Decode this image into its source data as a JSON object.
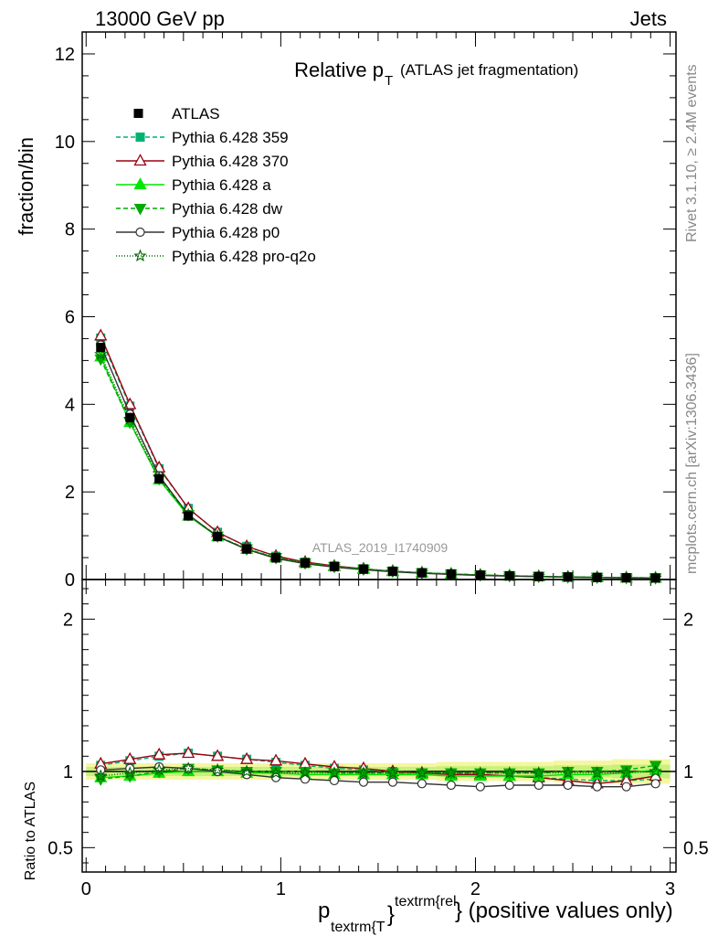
{
  "header": {
    "left": "13000 GeV pp",
    "right": "Jets"
  },
  "side_labels": {
    "rivet": "Rivet 3.1.10, ≥ 2.4M events",
    "mcplots": "mcplots.cern.ch [arXiv:1306.3436]"
  },
  "chart_data": {
    "type": "line",
    "title_main": "Relative p",
    "title_sub": "T",
    "title_paren": "(ATLAS jet fragmentation)",
    "watermark": "ATLAS_2019_I1740909",
    "ylabel": "fraction/bin",
    "ratio_ylabel": "Ratio to ATLAS",
    "xlabel_p": "p",
    "xlabel_sub": "textrm{T",
    "xlabel_brace1": "}",
    "xlabel_sup": "textrm{rel",
    "xlabel_rest": "} (positive values only)",
    "xlim": [
      -0.02,
      3.03
    ],
    "ylim": [
      0,
      12.5
    ],
    "ratio_ylim": [
      0.34,
      2.26
    ],
    "main_yticks": [
      "0",
      "2",
      "4",
      "6",
      "8",
      "10",
      "12"
    ],
    "ratio_yticks": [
      "0.5",
      "1",
      "2"
    ],
    "xticks": [
      "0",
      "1",
      "2",
      "3"
    ],
    "x": [
      0.075,
      0.225,
      0.375,
      0.525,
      0.675,
      0.825,
      0.975,
      1.125,
      1.275,
      1.425,
      1.575,
      1.725,
      1.875,
      2.025,
      2.175,
      2.325,
      2.475,
      2.625,
      2.775,
      2.925
    ],
    "atlas": {
      "name": "ATLAS",
      "y": [
        5.3,
        3.7,
        2.3,
        1.45,
        0.98,
        0.7,
        0.5,
        0.38,
        0.3,
        0.24,
        0.19,
        0.155,
        0.128,
        0.104,
        0.086,
        0.072,
        0.06,
        0.05,
        0.042,
        0.036
      ],
      "band": [
        0.03,
        0.03,
        0.03,
        0.03,
        0.03,
        0.03,
        0.03,
        0.03,
        0.03,
        0.03,
        0.03,
        0.03,
        0.035,
        0.035,
        0.035,
        0.035,
        0.04,
        0.04,
        0.045,
        0.045
      ]
    },
    "series": [
      {
        "name": "Pythia 6.428 359",
        "color": "#00b371",
        "dash": "5,3",
        "marker": "square-filled",
        "ratio": [
          1.04,
          1.07,
          1.1,
          1.12,
          1.1,
          1.08,
          1.06,
          1.04,
          1.02,
          1.01,
          1.0,
          0.99,
          0.99,
          0.98,
          0.97,
          0.96,
          0.95,
          0.94,
          0.94,
          0.95
        ]
      },
      {
        "name": "Pythia 6.428 370",
        "color": "#990011",
        "dash": "",
        "marker": "triangle-open",
        "ratio": [
          1.05,
          1.08,
          1.11,
          1.12,
          1.1,
          1.08,
          1.07,
          1.05,
          1.03,
          1.02,
          1.0,
          0.99,
          0.98,
          0.98,
          0.97,
          0.96,
          0.94,
          0.92,
          0.94,
          0.97
        ]
      },
      {
        "name": "Pythia 6.428 a",
        "color": "#00e600",
        "dash": "",
        "marker": "triangle-filled",
        "ratio": [
          0.96,
          0.97,
          0.99,
          1.0,
          1.0,
          0.99,
          0.99,
          0.98,
          0.98,
          0.98,
          0.98,
          0.98,
          0.97,
          0.97,
          0.97,
          0.97,
          0.98,
          0.98,
          0.99,
          1.01
        ]
      },
      {
        "name": "Pythia 6.428 dw",
        "color": "#00aa00",
        "dash": "5,3",
        "marker": "triangle-down-filled",
        "ratio": [
          0.95,
          0.97,
          1.0,
          1.02,
          1.01,
          1.0,
          1.0,
          1.0,
          0.99,
          0.99,
          0.99,
          0.99,
          0.99,
          0.99,
          0.99,
          0.99,
          1.0,
          1.0,
          1.01,
          1.04
        ]
      },
      {
        "name": "Pythia 6.428 p0",
        "color": "#333333",
        "dash": "",
        "marker": "circle-open",
        "ratio": [
          1.01,
          1.02,
          1.03,
          1.02,
          1.0,
          0.98,
          0.96,
          0.95,
          0.94,
          0.93,
          0.93,
          0.92,
          0.91,
          0.9,
          0.91,
          0.91,
          0.91,
          0.9,
          0.9,
          0.92
        ]
      },
      {
        "name": "Pythia 6.428 pro-q2o",
        "color": "#006600",
        "dash": "1,2",
        "marker": "star-open",
        "ratio": [
          0.97,
          0.99,
          1.01,
          1.02,
          1.01,
          1.0,
          0.99,
          0.99,
          0.99,
          0.99,
          0.99,
          0.99,
          0.99,
          0.99,
          0.99,
          0.99,
          0.99,
          0.99,
          0.99,
          1.0
        ]
      }
    ]
  }
}
